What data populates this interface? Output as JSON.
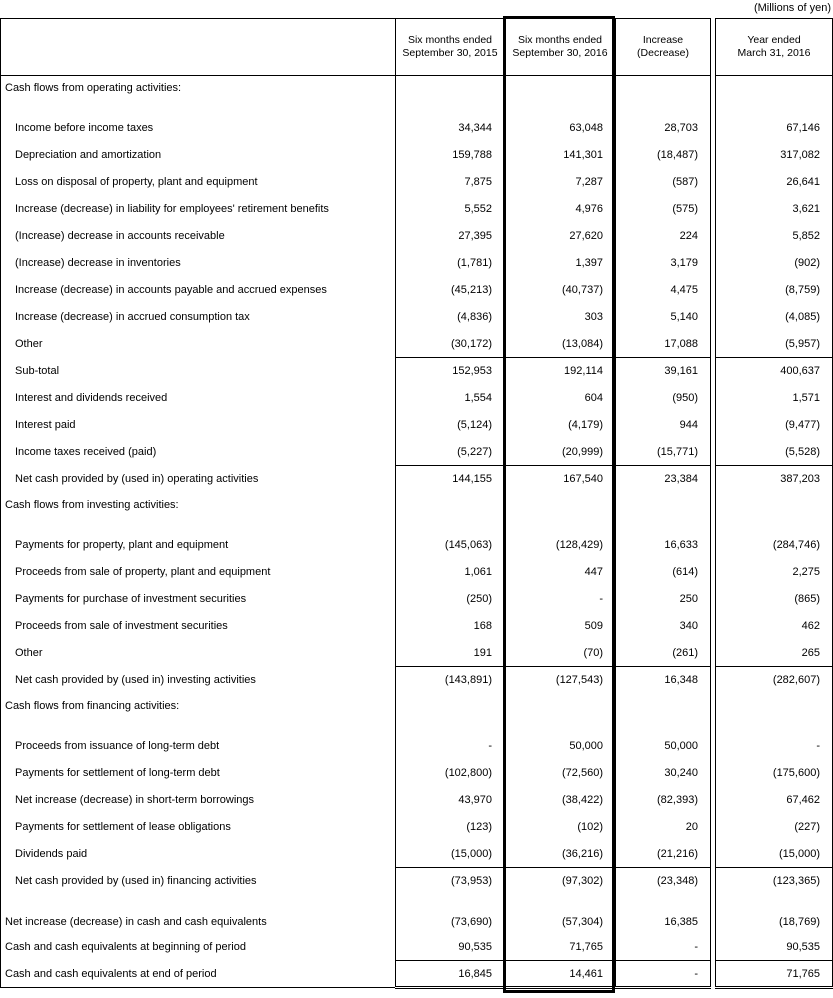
{
  "meta": {
    "unit_note": "(Millions of yen)"
  },
  "table": {
    "headers": [
      {
        "lines": [
          "Six months ended",
          "September 30, 2015"
        ]
      },
      {
        "lines": [
          "Six months ended",
          "September 30, 2016"
        ]
      },
      {
        "lines": [
          "Increase",
          "(Decrease)"
        ]
      },
      {
        "lines": [
          "Year ended",
          "March 31, 2016"
        ]
      }
    ],
    "rows": [
      {
        "type": "section",
        "label": "Cash flows from operating activities:",
        "values": [
          "",
          "",
          "",
          ""
        ]
      },
      {
        "type": "item",
        "label": "Income before income taxes",
        "values": [
          "34,344",
          "63,048",
          "28,703",
          "67,146"
        ]
      },
      {
        "type": "item",
        "label": "Depreciation and amortization",
        "values": [
          "159,788",
          "141,301",
          "(18,487)",
          "317,082"
        ]
      },
      {
        "type": "item",
        "label": "Loss on disposal of property, plant and equipment",
        "values": [
          "7,875",
          "7,287",
          "(587)",
          "26,641"
        ]
      },
      {
        "type": "item",
        "label": "Increase (decrease) in liability for employees' retirement benefits",
        "values": [
          "5,552",
          "4,976",
          "(575)",
          "3,621"
        ]
      },
      {
        "type": "item",
        "label": "(Increase) decrease in accounts receivable",
        "values": [
          "27,395",
          "27,620",
          "224",
          "5,852"
        ]
      },
      {
        "type": "item",
        "label": "(Increase) decrease in inventories",
        "values": [
          "(1,781)",
          "1,397",
          "3,179",
          "(902)"
        ]
      },
      {
        "type": "item",
        "label": "Increase (decrease) in accounts payable and accrued expenses",
        "values": [
          "(45,213)",
          "(40,737)",
          "4,475",
          "(8,759)"
        ]
      },
      {
        "type": "item",
        "label": "Increase (decrease) in accrued consumption tax",
        "values": [
          "(4,836)",
          "303",
          "5,140",
          "(4,085)"
        ]
      },
      {
        "type": "item",
        "label": "Other",
        "values": [
          "(30,172)",
          "(13,084)",
          "17,088",
          "(5,957)"
        ]
      },
      {
        "type": "total",
        "label": "Sub-total",
        "values": [
          "152,953",
          "192,114",
          "39,161",
          "400,637"
        ]
      },
      {
        "type": "item",
        "label": "Interest and dividends received",
        "values": [
          "1,554",
          "604",
          "(950)",
          "1,571"
        ]
      },
      {
        "type": "item",
        "label": "Interest paid",
        "values": [
          "(5,124)",
          "(4,179)",
          "944",
          "(9,477)"
        ]
      },
      {
        "type": "item",
        "label": "Income taxes received (paid)",
        "values": [
          "(5,227)",
          "(20,999)",
          "(15,771)",
          "(5,528)"
        ]
      },
      {
        "type": "total",
        "label": "Net cash provided by (used in) operating activities",
        "values": [
          "144,155",
          "167,540",
          "23,384",
          "387,203"
        ]
      },
      {
        "type": "section",
        "label": "Cash flows from investing activities:",
        "values": [
          "",
          "",
          "",
          ""
        ]
      },
      {
        "type": "item",
        "label": "Payments for property, plant and equipment",
        "values": [
          "(145,063)",
          "(128,429)",
          "16,633",
          "(284,746)"
        ]
      },
      {
        "type": "item",
        "label": "Proceeds from sale of property, plant and equipment",
        "values": [
          "1,061",
          "447",
          "(614)",
          "2,275"
        ]
      },
      {
        "type": "item",
        "label": "Payments for purchase of investment securities",
        "values": [
          "(250)",
          "-",
          "250",
          "(865)"
        ]
      },
      {
        "type": "item",
        "label": "Proceeds from sale of investment securities",
        "values": [
          "168",
          "509",
          "340",
          "462"
        ]
      },
      {
        "type": "item",
        "label": "Other",
        "values": [
          "191",
          "(70)",
          "(261)",
          "265"
        ]
      },
      {
        "type": "total",
        "label": "Net cash provided by (used in) investing activities",
        "values": [
          "(143,891)",
          "(127,543)",
          "16,348",
          "(282,607)"
        ]
      },
      {
        "type": "section",
        "label": "Cash flows from financing activities:",
        "values": [
          "",
          "",
          "",
          ""
        ]
      },
      {
        "type": "item",
        "label": "Proceeds from issuance of long-term debt",
        "values": [
          "-",
          "50,000",
          "50,000",
          "-"
        ]
      },
      {
        "type": "item",
        "label": "Payments for settlement of long-term debt",
        "values": [
          "(102,800)",
          "(72,560)",
          "30,240",
          "(175,600)"
        ]
      },
      {
        "type": "item",
        "label": "Net increase (decrease) in short-term borrowings",
        "values": [
          "43,970",
          "(38,422)",
          "(82,393)",
          "67,462"
        ]
      },
      {
        "type": "item",
        "label": "Payments for settlement of lease obligations",
        "values": [
          "(123)",
          "(102)",
          "20",
          "(227)"
        ]
      },
      {
        "type": "item",
        "label": "Dividends paid",
        "values": [
          "(15,000)",
          "(36,216)",
          "(21,216)",
          "(15,000)"
        ]
      },
      {
        "type": "total",
        "label": "Net cash provided by (used in) financing activities",
        "values": [
          "(73,953)",
          "(97,302)",
          "(23,348)",
          "(123,365)"
        ]
      },
      {
        "type": "flush_tall",
        "label": "Net increase (decrease) in cash and cash equivalents",
        "values": [
          "(73,690)",
          "(57,304)",
          "16,385",
          "(18,769)"
        ]
      },
      {
        "type": "flush",
        "label": "Cash and cash equivalents at beginning of period",
        "values": [
          "90,535",
          "71,765",
          "-",
          "90,535"
        ]
      },
      {
        "type": "flush_total",
        "label": "Cash and cash equivalents at end of period",
        "values": [
          "16,845",
          "14,461",
          "-",
          "71,765"
        ]
      }
    ]
  }
}
